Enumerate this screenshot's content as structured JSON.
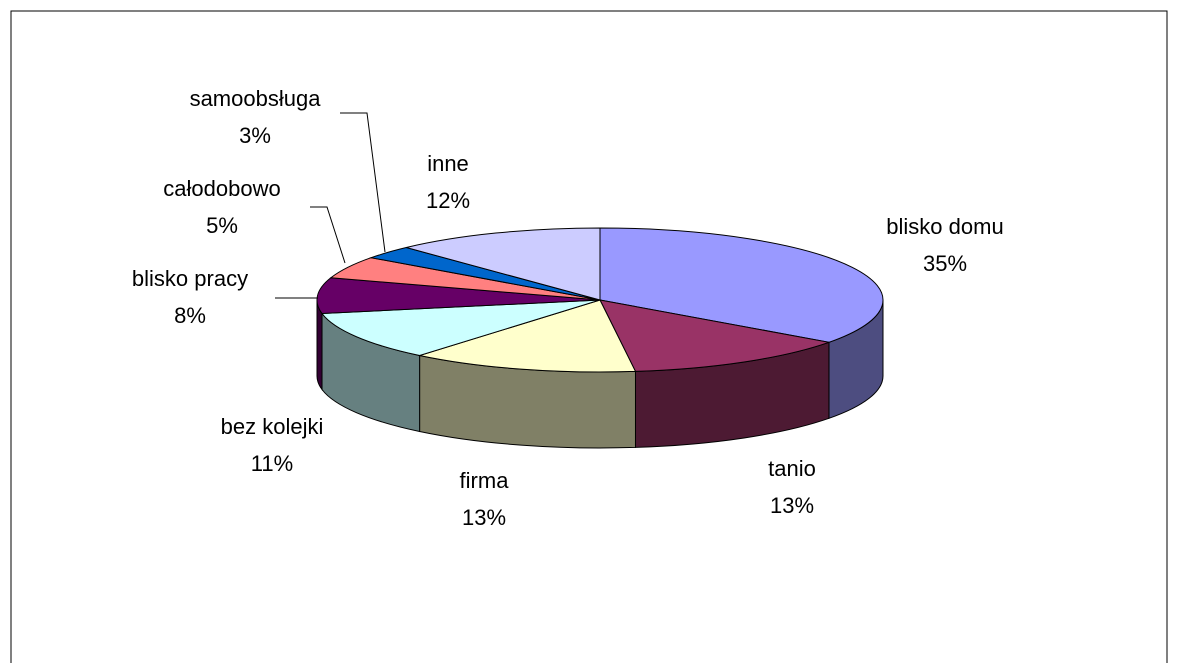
{
  "chart_data": {
    "type": "pie",
    "categories": [
      "blisko domu",
      "tanio",
      "firma",
      "bez kolejki",
      "blisko pracy",
      "całodobowo",
      "samoobsługa",
      "inne"
    ],
    "values": [
      35,
      13,
      13,
      11,
      8,
      5,
      3,
      12
    ],
    "value_labels": [
      "35%",
      "13%",
      "13%",
      "11%",
      "8%",
      "5%",
      "3%",
      "12%"
    ],
    "colors": [
      "#9999ff",
      "#993366",
      "#ffffcc",
      "#ccffff",
      "#660066",
      "#ff8080",
      "#0066cc",
      "#ccccff"
    ]
  }
}
